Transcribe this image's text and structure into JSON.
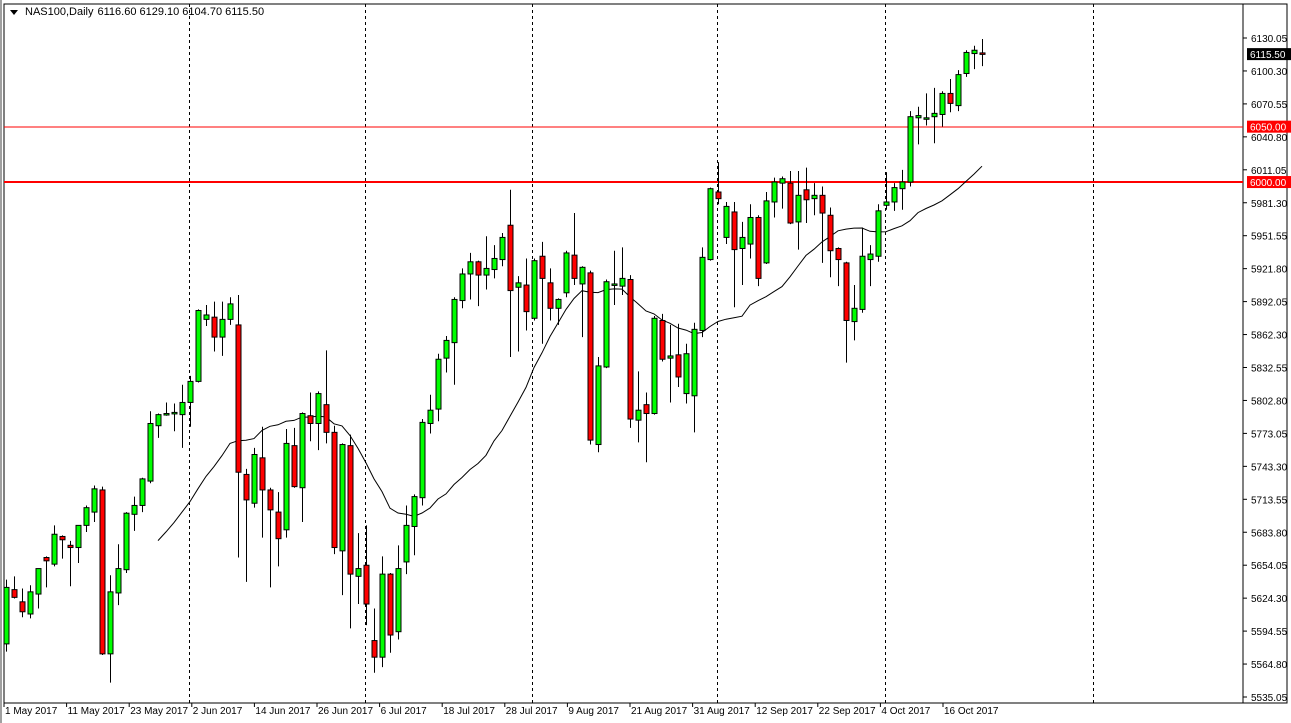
{
  "header": {
    "symbol": "NAS100,Daily",
    "ohlc_text": "6116.60 6129.10 6104.70 6115.50"
  },
  "colors": {
    "bull": "#00ff00",
    "bear": "#ff0000",
    "level_line": "#ff0000",
    "moving_average": "#000000",
    "background": "#ffffff"
  },
  "chart_data": {
    "type": "candlestick",
    "title": "NAS100,Daily",
    "ylim": [
      5535.05,
      6130.05
    ],
    "y_ticks": [
      "6130.05",
      "6100.30",
      "6070.55",
      "6040.80",
      "6011.05",
      "5981.30",
      "5951.55",
      "5921.80",
      "5892.05",
      "5862.30",
      "5832.55",
      "5802.80",
      "5773.05",
      "5743.30",
      "5713.55",
      "5683.80",
      "5654.05",
      "5624.30",
      "5594.55",
      "5564.80",
      "5535.05"
    ],
    "x_ticks": [
      "1 May 2017",
      "11 May 2017",
      "23 May 2017",
      "2 Jun 2017",
      "14 Jun 2017",
      "26 Jun 2017",
      "6 Jul 2017",
      "18 Jul 2017",
      "28 Jul 2017",
      "9 Aug 2017",
      "21 Aug 2017",
      "31 Aug 2017",
      "12 Sep 2017",
      "22 Sep 2017",
      "4 Oct 2017",
      "16 Oct 2017"
    ],
    "grid": false,
    "current_price": "6115.50",
    "levels": [
      {
        "price": 6050.0,
        "label": "6050.00",
        "weight": "thin"
      },
      {
        "price": 6000.0,
        "label": "6000.00",
        "weight": "thick"
      }
    ],
    "ohlc_order": [
      "open",
      "high",
      "low",
      "close"
    ],
    "ohlc": [
      [
        5583,
        5641,
        5576,
        5634
      ],
      [
        5632,
        5644,
        5624,
        5625
      ],
      [
        5621,
        5633,
        5607,
        5612
      ],
      [
        5610,
        5636,
        5606,
        5630
      ],
      [
        5628,
        5651,
        5615,
        5651
      ],
      [
        5661,
        5662,
        5634,
        5658
      ],
      [
        5655,
        5690,
        5653,
        5682
      ],
      [
        5680,
        5681,
        5660,
        5677
      ],
      [
        5672,
        5676,
        5635,
        5670
      ],
      [
        5670,
        5690,
        5656,
        5690
      ],
      [
        5690,
        5708,
        5684,
        5706
      ],
      [
        5702,
        5726,
        5693,
        5723
      ],
      [
        5722,
        5725,
        5573,
        5574
      ],
      [
        5574,
        5645,
        5548,
        5630
      ],
      [
        5629,
        5673,
        5618,
        5651
      ],
      [
        5650,
        5702,
        5647,
        5701
      ],
      [
        5700,
        5716,
        5685,
        5708
      ],
      [
        5708,
        5733,
        5702,
        5732
      ],
      [
        5730,
        5793,
        5728,
        5782
      ],
      [
        5780,
        5791,
        5769,
        5790
      ],
      [
        5790,
        5801,
        5789,
        5791
      ],
      [
        5791,
        5800,
        5775,
        5792
      ],
      [
        5790,
        5817,
        5760,
        5801
      ],
      [
        5801,
        5825,
        5779,
        5820
      ],
      [
        5820,
        5885,
        5819,
        5884
      ],
      [
        5876,
        5889,
        5870,
        5880
      ],
      [
        5878,
        5892,
        5847,
        5860
      ],
      [
        5860,
        5892,
        5843,
        5876
      ],
      [
        5876,
        5896,
        5871,
        5890
      ],
      [
        5871,
        5898,
        5661,
        5738
      ],
      [
        5736,
        5741,
        5639,
        5713
      ],
      [
        5710,
        5760,
        5706,
        5754
      ],
      [
        5751,
        5779,
        5679,
        5722
      ],
      [
        5722,
        5724,
        5634,
        5704
      ],
      [
        5702,
        5720,
        5653,
        5678
      ],
      [
        5686,
        5777,
        5679,
        5764
      ],
      [
        5762,
        5778,
        5724,
        5725
      ],
      [
        5724,
        5792,
        5693,
        5791
      ],
      [
        5789,
        5810,
        5766,
        5782
      ],
      [
        5782,
        5811,
        5758,
        5809
      ],
      [
        5799,
        5848,
        5764,
        5774
      ],
      [
        5774,
        5780,
        5664,
        5670
      ],
      [
        5667,
        5764,
        5627,
        5763
      ],
      [
        5762,
        5772,
        5597,
        5646
      ],
      [
        5644,
        5683,
        5619,
        5651
      ],
      [
        5654,
        5690,
        5600,
        5619
      ],
      [
        5586,
        5615,
        5557,
        5571
      ],
      [
        5571,
        5662,
        5562,
        5646
      ],
      [
        5646,
        5647,
        5575,
        5591
      ],
      [
        5594,
        5672,
        5587,
        5651
      ],
      [
        5657,
        5708,
        5646,
        5690
      ],
      [
        5689,
        5718,
        5663,
        5716
      ],
      [
        5715,
        5786,
        5708,
        5783
      ],
      [
        5782,
        5808,
        5773,
        5794
      ],
      [
        5795,
        5845,
        5784,
        5840
      ],
      [
        5841,
        5861,
        5828,
        5857
      ],
      [
        5855,
        5896,
        5817,
        5894
      ],
      [
        5893,
        5922,
        5886,
        5917
      ],
      [
        5917,
        5936,
        5894,
        5928
      ],
      [
        5928,
        5929,
        5888,
        5916
      ],
      [
        5916,
        5951,
        5903,
        5922
      ],
      [
        5921,
        5943,
        5913,
        5931
      ],
      [
        5930,
        5954,
        5924,
        5950
      ],
      [
        5961,
        5993,
        5842,
        5902
      ],
      [
        5905,
        5915,
        5847,
        5909
      ],
      [
        5907,
        5931,
        5866,
        5883
      ],
      [
        5877,
        5931,
        5875,
        5929
      ],
      [
        5933,
        5946,
        5854,
        5913
      ],
      [
        5909,
        5922,
        5875,
        5886
      ],
      [
        5886,
        5895,
        5871,
        5894
      ],
      [
        5900,
        5938,
        5896,
        5936
      ],
      [
        5934,
        5972,
        5907,
        5913
      ],
      [
        5908,
        5924,
        5860,
        5923
      ],
      [
        5918,
        5920,
        5763,
        5767
      ],
      [
        5763,
        5842,
        5756,
        5834
      ],
      [
        5833,
        5912,
        5832,
        5910
      ],
      [
        5907,
        5938,
        5889,
        5908
      ],
      [
        5906,
        5941,
        5898,
        5913
      ],
      [
        5912,
        5916,
        5778,
        5786
      ],
      [
        5785,
        5829,
        5765,
        5794
      ],
      [
        5799,
        5810,
        5747,
        5791
      ],
      [
        5791,
        5879,
        5790,
        5877
      ],
      [
        5875,
        5881,
        5838,
        5840
      ],
      [
        5841,
        5871,
        5801,
        5843
      ],
      [
        5844,
        5872,
        5815,
        5824
      ],
      [
        5809,
        5854,
        5800,
        5845
      ],
      [
        5807,
        5873,
        5774,
        5867
      ],
      [
        5866,
        5941,
        5860,
        5932
      ],
      [
        5930,
        5995,
        5929,
        5994
      ],
      [
        5991,
        6018,
        5980,
        5985
      ],
      [
        5950,
        5982,
        5944,
        5978
      ],
      [
        5973,
        5982,
        5887,
        5939
      ],
      [
        5940,
        5964,
        5907,
        5950
      ],
      [
        5944,
        5980,
        5931,
        5968
      ],
      [
        5968,
        5970,
        5906,
        5913
      ],
      [
        5927,
        5991,
        5926,
        5983
      ],
      [
        5982,
        6004,
        5968,
        6000
      ],
      [
        5999,
        6005,
        5976,
        6003
      ],
      [
        5999,
        6010,
        5962,
        5963
      ],
      [
        5964,
        6010,
        5939,
        5988
      ],
      [
        5993,
        6013,
        5963,
        5984
      ],
      [
        5985,
        5999,
        5970,
        5988
      ],
      [
        5988,
        5996,
        5927,
        5972
      ],
      [
        5970,
        5977,
        5914,
        5938
      ],
      [
        5940,
        5941,
        5906,
        5930
      ],
      [
        5927,
        5928,
        5837,
        5875
      ],
      [
        5874,
        5907,
        5857,
        5886
      ],
      [
        5885,
        5959,
        5882,
        5933
      ],
      [
        5930,
        5943,
        5906,
        5935
      ],
      [
        5933,
        5980,
        5928,
        5974
      ],
      [
        5979,
        6009,
        5975,
        5982
      ],
      [
        5982,
        5999,
        5974,
        5995
      ],
      [
        5994,
        6011,
        5975,
        6000
      ],
      [
        6000,
        6064,
        5996,
        6059
      ],
      [
        6058,
        6068,
        6034,
        6060
      ],
      [
        6058,
        6080,
        6051,
        6058
      ],
      [
        6059,
        6085,
        6035,
        6062
      ],
      [
        6061,
        6082,
        6050,
        6080
      ],
      [
        6080,
        6093,
        6063,
        6071
      ],
      [
        6069,
        6101,
        6064,
        6097
      ],
      [
        6098,
        6119,
        6095,
        6117
      ],
      [
        6116,
        6123,
        6102,
        6119
      ],
      [
        6116.6,
        6129.1,
        6104.7,
        6115.5
      ]
    ]
  }
}
